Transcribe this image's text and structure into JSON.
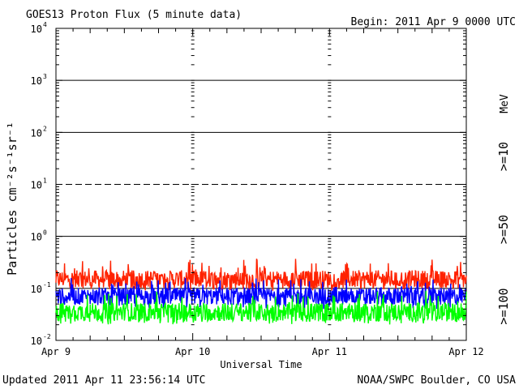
{
  "header": {
    "title": "GOES13 Proton Flux (5 minute data)",
    "begin": "Begin: 2011 Apr 9 0000 UTC"
  },
  "footer": {
    "updated": "Updated 2011 Apr 11 23:56:14 UTC",
    "credit": "NOAA/SWPC Boulder, CO USA"
  },
  "chart_data": {
    "type": "line",
    "xlabel": "Universal Time",
    "ylabel": "Particles cm⁻²s⁻¹sr⁻¹",
    "yscale": "log",
    "ylim": [
      0.01,
      10000
    ],
    "y_ticks": [
      {
        "base": "10",
        "exp": "4",
        "value": 10000
      },
      {
        "base": "10",
        "exp": "3",
        "value": 1000
      },
      {
        "base": "10",
        "exp": "2",
        "value": 100
      },
      {
        "base": "10",
        "exp": "1",
        "value": 10
      },
      {
        "base": "10",
        "exp": "0",
        "value": 1
      },
      {
        "base": "10",
        "exp": "-1",
        "value": 0.1
      },
      {
        "base": "10",
        "exp": "-2",
        "value": 0.01
      }
    ],
    "x_ticks": [
      "Apr 9",
      "Apr 10",
      "Apr 11",
      "Apr 12"
    ],
    "xlim_days": [
      0,
      3
    ],
    "threshold_lines": [
      {
        "value": 1000,
        "style": "solid"
      },
      {
        "value": 100,
        "style": "solid"
      },
      {
        "value": 10,
        "style": "dashed"
      },
      {
        "value": 1,
        "style": "solid"
      },
      {
        "value": 0.1,
        "style": "solid"
      }
    ],
    "energy_unit": "MeV",
    "series": [
      {
        "name": ">=10",
        "color": "#ff2200",
        "level": 0.15,
        "low": 0.09,
        "high": 0.38
      },
      {
        "name": ">=50",
        "color": "#0000ff",
        "level": 0.07,
        "low": 0.04,
        "high": 0.16
      },
      {
        "name": ">=100",
        "color": "#00ff00",
        "level": 0.035,
        "low": 0.02,
        "high": 0.09
      }
    ]
  }
}
